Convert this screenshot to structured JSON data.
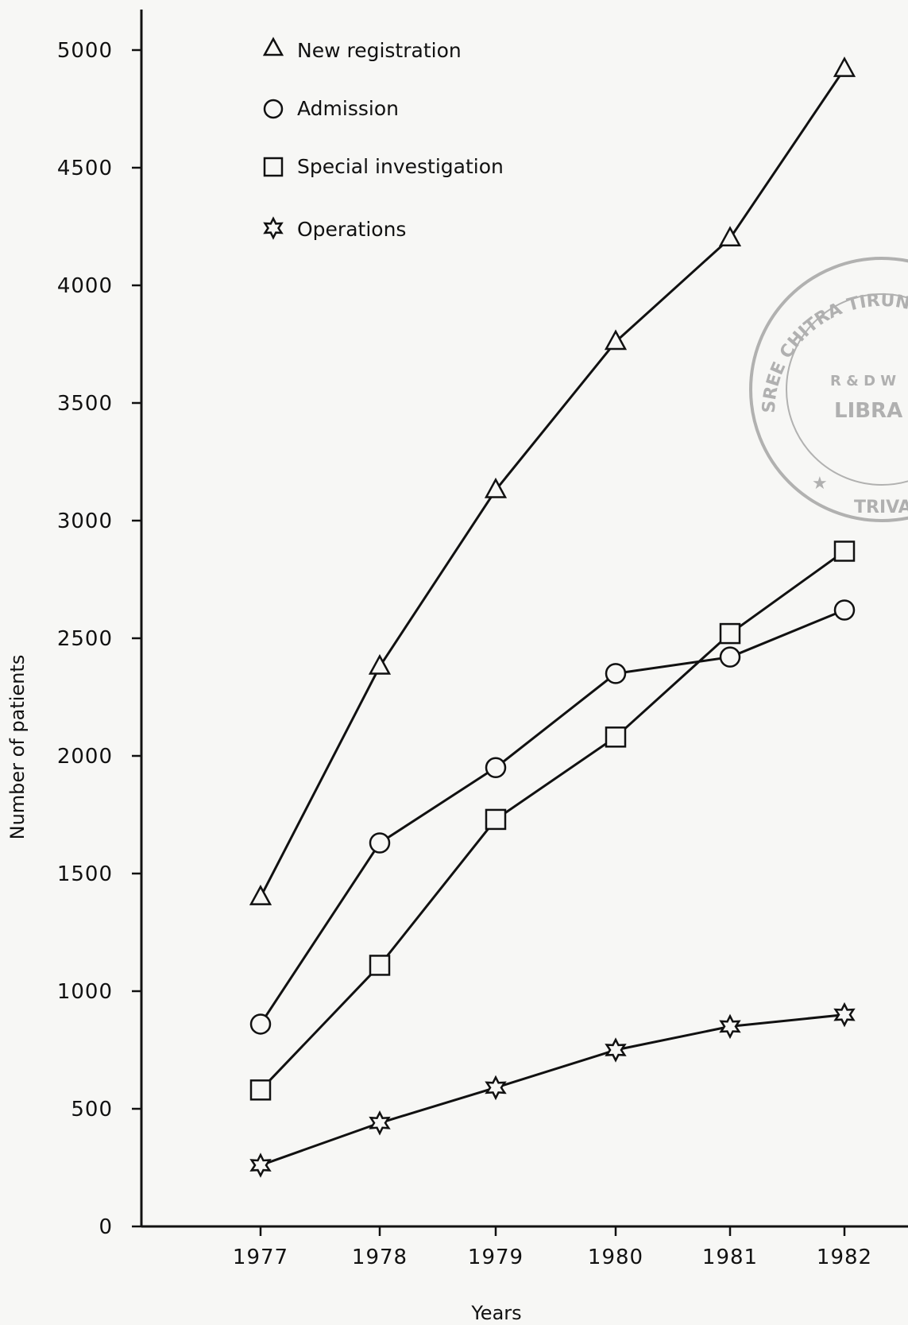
{
  "chart_data": {
    "type": "line",
    "title": "",
    "xlabel": "Years",
    "ylabel": "Number of patients",
    "x": [
      "1977",
      "1978",
      "1979",
      "1980",
      "1981",
      "1982"
    ],
    "ylim": [
      0,
      5000
    ],
    "yticks": [
      "0",
      "500",
      "1000",
      "1500",
      "2000",
      "2500",
      "3000",
      "3500",
      "4000",
      "4500",
      "5000"
    ],
    "grid": false,
    "legend_position": "top-left",
    "series": [
      {
        "name": "New registration",
        "marker": "triangle",
        "values": [
          1400,
          2380,
          3130,
          3760,
          4200,
          4920
        ]
      },
      {
        "name": "Admission",
        "marker": "circle",
        "values": [
          860,
          1630,
          1950,
          2350,
          2420,
          2620
        ]
      },
      {
        "name": "Special investigation",
        "marker": "square",
        "values": [
          580,
          1110,
          1730,
          2080,
          2520,
          2870
        ]
      },
      {
        "name": "Operations",
        "marker": "star",
        "values": [
          260,
          440,
          590,
          750,
          850,
          900
        ]
      }
    ]
  },
  "stamp": {
    "text_top": "SREE CHITRA TIRUNAL M",
    "text_middle_1": "R & D W",
    "text_middle_2": "LIBRA",
    "text_bottom": "TRIVA"
  },
  "colors": {
    "ink": "#111111",
    "paper": "#f7f7f5",
    "stamp": "#9a9a9a"
  }
}
